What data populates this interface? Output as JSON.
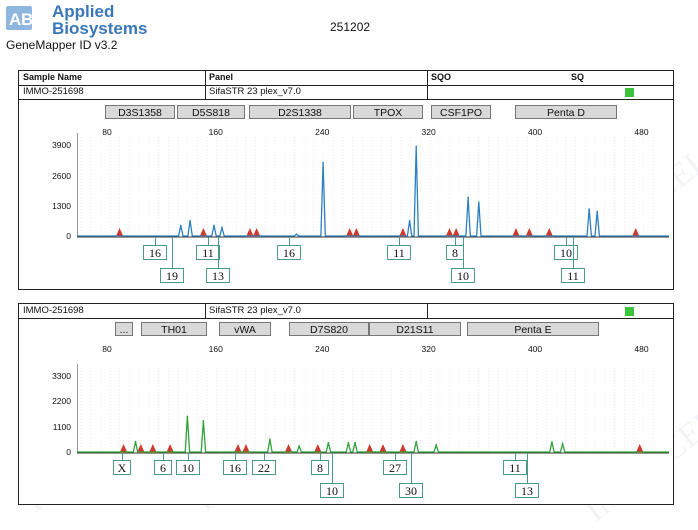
{
  "header": {
    "brand_line1": "Applied",
    "brand_line2": "Biosystems",
    "product": "GeneMapper ID v3.2",
    "run_id": "251202"
  },
  "table_header": {
    "sample_name": "Sample Name",
    "panel": "Panel",
    "sqo": "SQO",
    "sq": "SQ"
  },
  "colors": {
    "blue_trace": "#2d7fc0",
    "green_trace": "#2fa33a",
    "size_marker": "#d0392a",
    "status_ok": "#3cc43c"
  },
  "watermark": "IMMOCELL",
  "panel1": {
    "sample": "IMMO-251698",
    "panel": "SifaSTR 23 plex_v7.0",
    "markers": [
      "D3S1358",
      "D5S818",
      "D2S1338",
      "TPOX",
      "CSF1PO",
      "Penta D"
    ],
    "xticks": [
      "80",
      "160",
      "240",
      "320",
      "400",
      "480"
    ],
    "yticks": [
      "3900",
      "2600",
      "1300",
      "0"
    ],
    "alleles_top": [
      "16",
      "11",
      "16",
      "11",
      "8",
      "10"
    ],
    "alleles_bottom": [
      "19",
      "13",
      "10",
      "11"
    ]
  },
  "panel2": {
    "sample": "IMMO-251698",
    "panel": "SifaSTR 23 plex_v7.0",
    "markers": [
      "...",
      "TH01",
      "vWA",
      "D7S820",
      "D21S11",
      "Penta E"
    ],
    "xticks": [
      "80",
      "160",
      "240",
      "320",
      "400",
      "480"
    ],
    "yticks": [
      "3300",
      "2200",
      "1100",
      "0"
    ],
    "alleles_top": [
      "X",
      "6",
      "10",
      "16",
      "22",
      "8",
      "27",
      "11"
    ],
    "alleles_bottom": [
      "10",
      "30",
      "13"
    ]
  },
  "chart_data": [
    {
      "type": "line",
      "title": "",
      "xlabel": "",
      "ylabel": "",
      "xlim": [
        55,
        500
      ],
      "ylim": [
        0,
        4300
      ],
      "series": [
        {
          "peaks": [
            {
              "x": 133,
              "y": 500
            },
            {
              "x": 140,
              "y": 700
            },
            {
              "x": 158,
              "y": 500
            },
            {
              "x": 164,
              "y": 400
            },
            {
              "x": 220,
              "y": 120
            },
            {
              "x": 240,
              "y": 3200
            },
            {
              "x": 305,
              "y": 700
            },
            {
              "x": 310,
              "y": 3900
            },
            {
              "x": 349,
              "y": 1700
            },
            {
              "x": 357,
              "y": 1500
            },
            {
              "x": 440,
              "y": 1200
            },
            {
              "x": 446,
              "y": 1100
            }
          ]
        }
      ],
      "size_standard_x": [
        87,
        150,
        185,
        190,
        260,
        265,
        300,
        335,
        340,
        385,
        395,
        410,
        475
      ]
    },
    {
      "type": "line",
      "title": "",
      "xlabel": "",
      "ylabel": "",
      "xlim": [
        55,
        500
      ],
      "ylim": [
        0,
        3700
      ],
      "series": [
        {
          "peaks": [
            {
              "x": 99,
              "y": 500
            },
            {
              "x": 138,
              "y": 1600
            },
            {
              "x": 150,
              "y": 1400
            },
            {
              "x": 200,
              "y": 600
            },
            {
              "x": 222,
              "y": 300
            },
            {
              "x": 244,
              "y": 450
            },
            {
              "x": 259,
              "y": 450
            },
            {
              "x": 264,
              "y": 450
            },
            {
              "x": 310,
              "y": 500
            },
            {
              "x": 325,
              "y": 350
            },
            {
              "x": 412,
              "y": 480
            },
            {
              "x": 420,
              "y": 400
            }
          ]
        }
      ],
      "size_standard_x": [
        90,
        103,
        112,
        125,
        176,
        182,
        214,
        236,
        275,
        285,
        300,
        478
      ]
    }
  ]
}
